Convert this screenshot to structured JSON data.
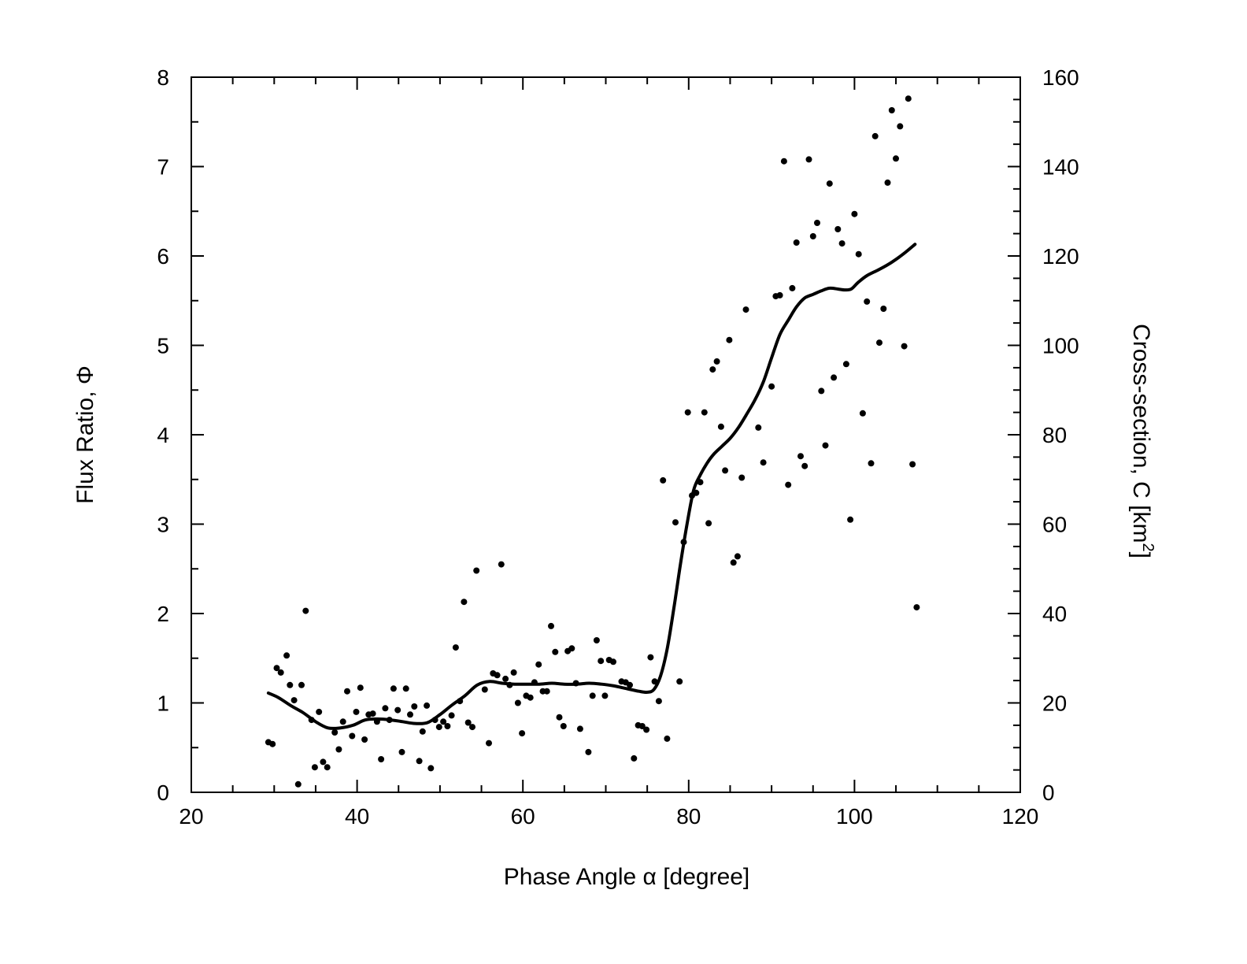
{
  "chart_data": {
    "type": "scatter",
    "xlabel": "Phase Angle α [degree]",
    "ylabel": "Flux Ratio, Φ",
    "y2label_main": "Cross-section, C [km",
    "y2label_sup": "2",
    "y2label_end": "]",
    "xlim": [
      20,
      120
    ],
    "ylim": [
      0,
      8
    ],
    "y2lim": [
      0,
      160
    ],
    "grid": false,
    "x_ticks": [
      20,
      40,
      60,
      80,
      100,
      120
    ],
    "y_ticks": [
      0,
      1,
      2,
      3,
      4,
      5,
      6,
      7,
      8
    ],
    "y2_ticks": [
      0,
      20,
      40,
      60,
      80,
      100,
      120,
      140,
      160
    ],
    "series": [
      {
        "kind": "scatter",
        "points": [
          [
            29.3,
            0.56
          ],
          [
            29.8,
            0.54
          ],
          [
            30.3,
            1.39
          ],
          [
            30.8,
            1.34
          ],
          [
            31.5,
            1.53
          ],
          [
            31.9,
            1.2
          ],
          [
            32.4,
            1.03
          ],
          [
            32.9,
            0.09
          ],
          [
            33.3,
            1.2
          ],
          [
            33.8,
            2.03
          ],
          [
            34.5,
            0.81
          ],
          [
            34.9,
            0.28
          ],
          [
            35.4,
            0.9
          ],
          [
            35.9,
            0.34
          ],
          [
            36.4,
            0.28
          ],
          [
            37.3,
            0.67
          ],
          [
            37.8,
            0.48
          ],
          [
            38.3,
            0.79
          ],
          [
            38.8,
            1.13
          ],
          [
            39.4,
            0.63
          ],
          [
            39.9,
            0.9
          ],
          [
            40.4,
            1.17
          ],
          [
            40.9,
            0.59
          ],
          [
            41.4,
            0.87
          ],
          [
            41.9,
            0.88
          ],
          [
            42.4,
            0.79
          ],
          [
            42.9,
            0.37
          ],
          [
            43.4,
            0.94
          ],
          [
            43.9,
            0.81
          ],
          [
            44.4,
            1.16
          ],
          [
            44.9,
            0.92
          ],
          [
            45.4,
            0.45
          ],
          [
            45.9,
            1.16
          ],
          [
            46.4,
            0.87
          ],
          [
            46.9,
            0.96
          ],
          [
            47.5,
            0.35
          ],
          [
            47.9,
            0.68
          ],
          [
            48.4,
            0.97
          ],
          [
            48.9,
            0.27
          ],
          [
            49.4,
            0.81
          ],
          [
            49.9,
            0.73
          ],
          [
            50.4,
            0.79
          ],
          [
            50.9,
            0.74
          ],
          [
            51.4,
            0.86
          ],
          [
            51.9,
            1.62
          ],
          [
            52.4,
            1.02
          ],
          [
            52.9,
            2.13
          ],
          [
            53.4,
            0.78
          ],
          [
            53.9,
            0.73
          ],
          [
            54.4,
            2.48
          ],
          [
            55.4,
            1.15
          ],
          [
            55.9,
            0.55
          ],
          [
            56.4,
            1.33
          ],
          [
            56.9,
            1.31
          ],
          [
            57.4,
            2.55
          ],
          [
            57.9,
            1.27
          ],
          [
            58.4,
            1.2
          ],
          [
            58.9,
            1.34
          ],
          [
            59.4,
            1.0
          ],
          [
            59.9,
            0.66
          ],
          [
            60.4,
            1.08
          ],
          [
            60.9,
            1.06
          ],
          [
            61.4,
            1.23
          ],
          [
            61.9,
            1.43
          ],
          [
            62.4,
            1.13
          ],
          [
            62.9,
            1.13
          ],
          [
            63.4,
            1.86
          ],
          [
            63.9,
            1.57
          ],
          [
            64.4,
            0.84
          ],
          [
            64.9,
            0.74
          ],
          [
            65.4,
            1.58
          ],
          [
            65.9,
            1.61
          ],
          [
            66.4,
            1.22
          ],
          [
            66.9,
            0.71
          ],
          [
            67.9,
            0.45
          ],
          [
            68.4,
            1.08
          ],
          [
            68.9,
            1.7
          ],
          [
            69.4,
            1.47
          ],
          [
            69.9,
            1.08
          ],
          [
            70.4,
            1.48
          ],
          [
            70.9,
            1.46
          ],
          [
            71.9,
            1.24
          ],
          [
            72.4,
            1.23
          ],
          [
            72.9,
            1.2
          ],
          [
            73.4,
            0.38
          ],
          [
            73.9,
            0.75
          ],
          [
            74.4,
            0.74
          ],
          [
            74.9,
            0.7
          ],
          [
            75.4,
            1.51
          ],
          [
            75.9,
            1.24
          ],
          [
            76.4,
            1.02
          ],
          [
            76.9,
            3.49
          ],
          [
            77.4,
            0.6
          ],
          [
            78.4,
            3.02
          ],
          [
            78.9,
            1.24
          ],
          [
            79.4,
            2.8
          ],
          [
            79.9,
            4.25
          ],
          [
            80.4,
            3.32
          ],
          [
            80.9,
            3.35
          ],
          [
            81.4,
            3.47
          ],
          [
            81.9,
            4.25
          ],
          [
            82.4,
            3.01
          ],
          [
            82.9,
            4.73
          ],
          [
            83.4,
            4.82
          ],
          [
            83.9,
            4.09
          ],
          [
            84.4,
            3.6
          ],
          [
            84.9,
            5.06
          ],
          [
            85.4,
            2.57
          ],
          [
            85.9,
            2.64
          ],
          [
            86.4,
            3.52
          ],
          [
            86.9,
            5.4
          ],
          [
            88.4,
            4.08
          ],
          [
            89.0,
            3.69
          ],
          [
            90.0,
            4.54
          ],
          [
            90.5,
            5.55
          ],
          [
            91.0,
            5.56
          ],
          [
            91.5,
            7.06
          ],
          [
            92.0,
            3.44
          ],
          [
            92.5,
            5.64
          ],
          [
            93.0,
            6.15
          ],
          [
            93.5,
            3.76
          ],
          [
            94.0,
            3.65
          ],
          [
            94.5,
            7.08
          ],
          [
            95.0,
            6.22
          ],
          [
            95.5,
            6.37
          ],
          [
            96.0,
            4.49
          ],
          [
            96.5,
            3.88
          ],
          [
            97.0,
            6.81
          ],
          [
            97.5,
            4.64
          ],
          [
            98.0,
            6.3
          ],
          [
            98.5,
            6.14
          ],
          [
            99.0,
            4.79
          ],
          [
            99.5,
            3.05
          ],
          [
            100.0,
            6.47
          ],
          [
            100.5,
            6.02
          ],
          [
            101.0,
            4.24
          ],
          [
            101.5,
            5.49
          ],
          [
            102.0,
            3.68
          ],
          [
            102.5,
            7.34
          ],
          [
            103.0,
            5.03
          ],
          [
            103.5,
            5.41
          ],
          [
            104.0,
            6.82
          ],
          [
            104.5,
            7.63
          ],
          [
            105.0,
            7.09
          ],
          [
            105.5,
            7.45
          ],
          [
            106.0,
            4.99
          ],
          [
            106.5,
            7.76
          ],
          [
            107.0,
            3.67
          ],
          [
            107.5,
            2.07
          ]
        ]
      },
      {
        "kind": "line",
        "points": [
          [
            29.3,
            1.11
          ],
          [
            30.5,
            1.06
          ],
          [
            32.0,
            0.97
          ],
          [
            33.5,
            0.89
          ],
          [
            35.0,
            0.79
          ],
          [
            36.5,
            0.72
          ],
          [
            38.0,
            0.72
          ],
          [
            39.5,
            0.75
          ],
          [
            41.0,
            0.81
          ],
          [
            42.5,
            0.82
          ],
          [
            44.0,
            0.81
          ],
          [
            45.5,
            0.79
          ],
          [
            47.0,
            0.77
          ],
          [
            48.5,
            0.78
          ],
          [
            50.0,
            0.87
          ],
          [
            51.5,
            0.98
          ],
          [
            53.0,
            1.08
          ],
          [
            54.5,
            1.2
          ],
          [
            56.0,
            1.24
          ],
          [
            57.5,
            1.22
          ],
          [
            59.0,
            1.21
          ],
          [
            60.5,
            1.21
          ],
          [
            62.0,
            1.21
          ],
          [
            63.5,
            1.22
          ],
          [
            65.0,
            1.21
          ],
          [
            66.5,
            1.21
          ],
          [
            68.0,
            1.22
          ],
          [
            69.5,
            1.21
          ],
          [
            71.0,
            1.19
          ],
          [
            72.5,
            1.16
          ],
          [
            74.0,
            1.13
          ],
          [
            75.0,
            1.12
          ],
          [
            75.8,
            1.15
          ],
          [
            76.6,
            1.3
          ],
          [
            77.4,
            1.6
          ],
          [
            78.2,
            2.05
          ],
          [
            79.0,
            2.55
          ],
          [
            79.8,
            3.0
          ],
          [
            80.6,
            3.38
          ],
          [
            81.4,
            3.55
          ],
          [
            82.2,
            3.68
          ],
          [
            83.0,
            3.78
          ],
          [
            84.0,
            3.87
          ],
          [
            85.0,
            3.96
          ],
          [
            86.0,
            4.08
          ],
          [
            87.0,
            4.23
          ],
          [
            88.0,
            4.39
          ],
          [
            89.0,
            4.59
          ],
          [
            90.0,
            4.86
          ],
          [
            91.0,
            5.12
          ],
          [
            92.0,
            5.28
          ],
          [
            93.0,
            5.43
          ],
          [
            94.0,
            5.53
          ],
          [
            95.0,
            5.57
          ],
          [
            96.0,
            5.61
          ],
          [
            97.0,
            5.64
          ],
          [
            98.0,
            5.63
          ],
          [
            98.8,
            5.62
          ],
          [
            99.6,
            5.63
          ],
          [
            100.4,
            5.7
          ],
          [
            101.5,
            5.78
          ],
          [
            103.0,
            5.85
          ],
          [
            104.5,
            5.93
          ],
          [
            106.0,
            6.03
          ],
          [
            107.3,
            6.13
          ]
        ]
      }
    ]
  }
}
